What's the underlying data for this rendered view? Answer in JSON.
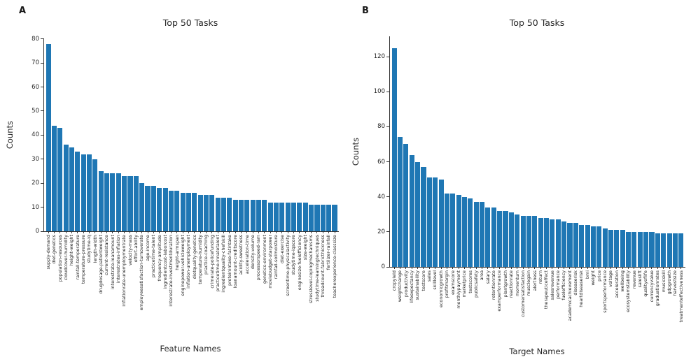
{
  "figure": {
    "background": "#ffffff",
    "bar_color": "#1f77b4",
    "axis_color": "#333333",
    "text_color": "#262626"
  },
  "chart_data": [
    {
      "type": "bar",
      "panel_label": "A",
      "title": "Top 50 Tasks",
      "xlabel": "Feature Names",
      "ylabel": "Counts",
      "ylim": [
        0,
        80.5
      ],
      "yticks": [
        0,
        10,
        20,
        30,
        40,
        50,
        60,
        70,
        80
      ],
      "grid": false,
      "legend": "none",
      "categories": [
        "supply-demand",
        "diet-genetics",
        "population-resources",
        "cloudcover-humidity",
        "height-weight",
        "rainfall-temperature",
        "temperature-pressure",
        "studytime-iq",
        "length-width",
        "drugdosage-patientweight",
        "current-resistance",
        "interestrate-loanamount",
        "interestrates-inflation",
        "inflationrate-unemploymentrate",
        "velocity-mass",
        "effort-ability",
        "employeesatisfaction-turnoverate",
        "age-income",
        "practicetime-talent",
        "frequency-amplitude",
        "ingredientcost-laborcost",
        "interestrate-investmentduration",
        "height-armspan",
        "enginepower-vehicleweight",
        "inflation-unemployment",
        "dietquality-genetics",
        "temperature-humidity",
        "practice-coaching",
        "crimerate-policefunding",
        "practicetime-innatetalent",
        "ingredientquality-chefskill",
        "proteinintake-fatintake",
        "loanamount-creditscore",
        "acidity-sweetness",
        "acceleration-time",
        "density-volume",
        "processorspeed-ram",
        "genetics-environment",
        "moviebudget-starpower",
        "rainfall-soilmoisture",
        "diet-exercise",
        "screentime-physicalactivity",
        "studytime-iqscore",
        "enginesize-fuelefficiency",
        "size-weight",
        "stresslevel-copingmechanisms",
        "studytime-learningtechniques",
        "threadcount-fabricthickness",
        "fertilizer-rainfall",
        "teacherexperience-classsize"
      ],
      "values": [
        78,
        44,
        43,
        36,
        35,
        33,
        32,
        32,
        30,
        25,
        24,
        24,
        24,
        23,
        23,
        23,
        20,
        19,
        19,
        18,
        18,
        17,
        17,
        16,
        16,
        16,
        15,
        15,
        15,
        14,
        14,
        14,
        13,
        13,
        13,
        13,
        13,
        13,
        12,
        12,
        12,
        12,
        12,
        12,
        12,
        11,
        11,
        11,
        11,
        11
      ]
    },
    {
      "type": "bar",
      "panel_label": "B",
      "title": "Top 50 Tasks",
      "xlabel": "Target Names",
      "ylabel": "Counts",
      "ylim": [
        0,
        132
      ],
      "yticks": [
        0,
        20,
        40,
        60,
        80,
        100,
        120
      ],
      "grid": false,
      "legend": "none",
      "categories": [
        "cropyield",
        "weightchange",
        "productivity",
        "lifeexpectancy",
        "sustainability",
        "testscore",
        "sales",
        "skilllevel",
        "economicgrowth",
        "profitmargin",
        "examscore",
        "monthlypayment",
        "marketprice",
        "testscores",
        "publicsafety",
        "area",
        "salary",
        "retentionrate",
        "examperformance",
        "plantgrowth",
        "reactionrate",
        "momentum",
        "customersatisfaction",
        "musclegain",
        "alertness",
        "return",
        "therapeuticeffect",
        "salesrevenue",
        "performance",
        "fuelefficiency",
        "academicachievement",
        "diseaserisk",
        "heartdiseaserisk",
        "bmi",
        "weight",
        "price",
        "sportsperformance",
        "voltage",
        "acceleration",
        "wellbeing",
        "ecosystemstability",
        "revenue",
        "saleslift",
        "qualityoflife",
        "currencyvalue",
        "graduationrates",
        "musicskill",
        "gdpgrowth",
        "harvestsize",
        "treatmenteffectiveness"
      ],
      "values": [
        125,
        74,
        70,
        64,
        60,
        57,
        51,
        51,
        50,
        42,
        42,
        41,
        40,
        39,
        37,
        37,
        34,
        34,
        32,
        32,
        31,
        30,
        29,
        29,
        29,
        28,
        28,
        27,
        27,
        26,
        25,
        25,
        24,
        24,
        23,
        23,
        22,
        21,
        21,
        21,
        20,
        20,
        20,
        20,
        20,
        19,
        19,
        19,
        19,
        19
      ]
    }
  ]
}
